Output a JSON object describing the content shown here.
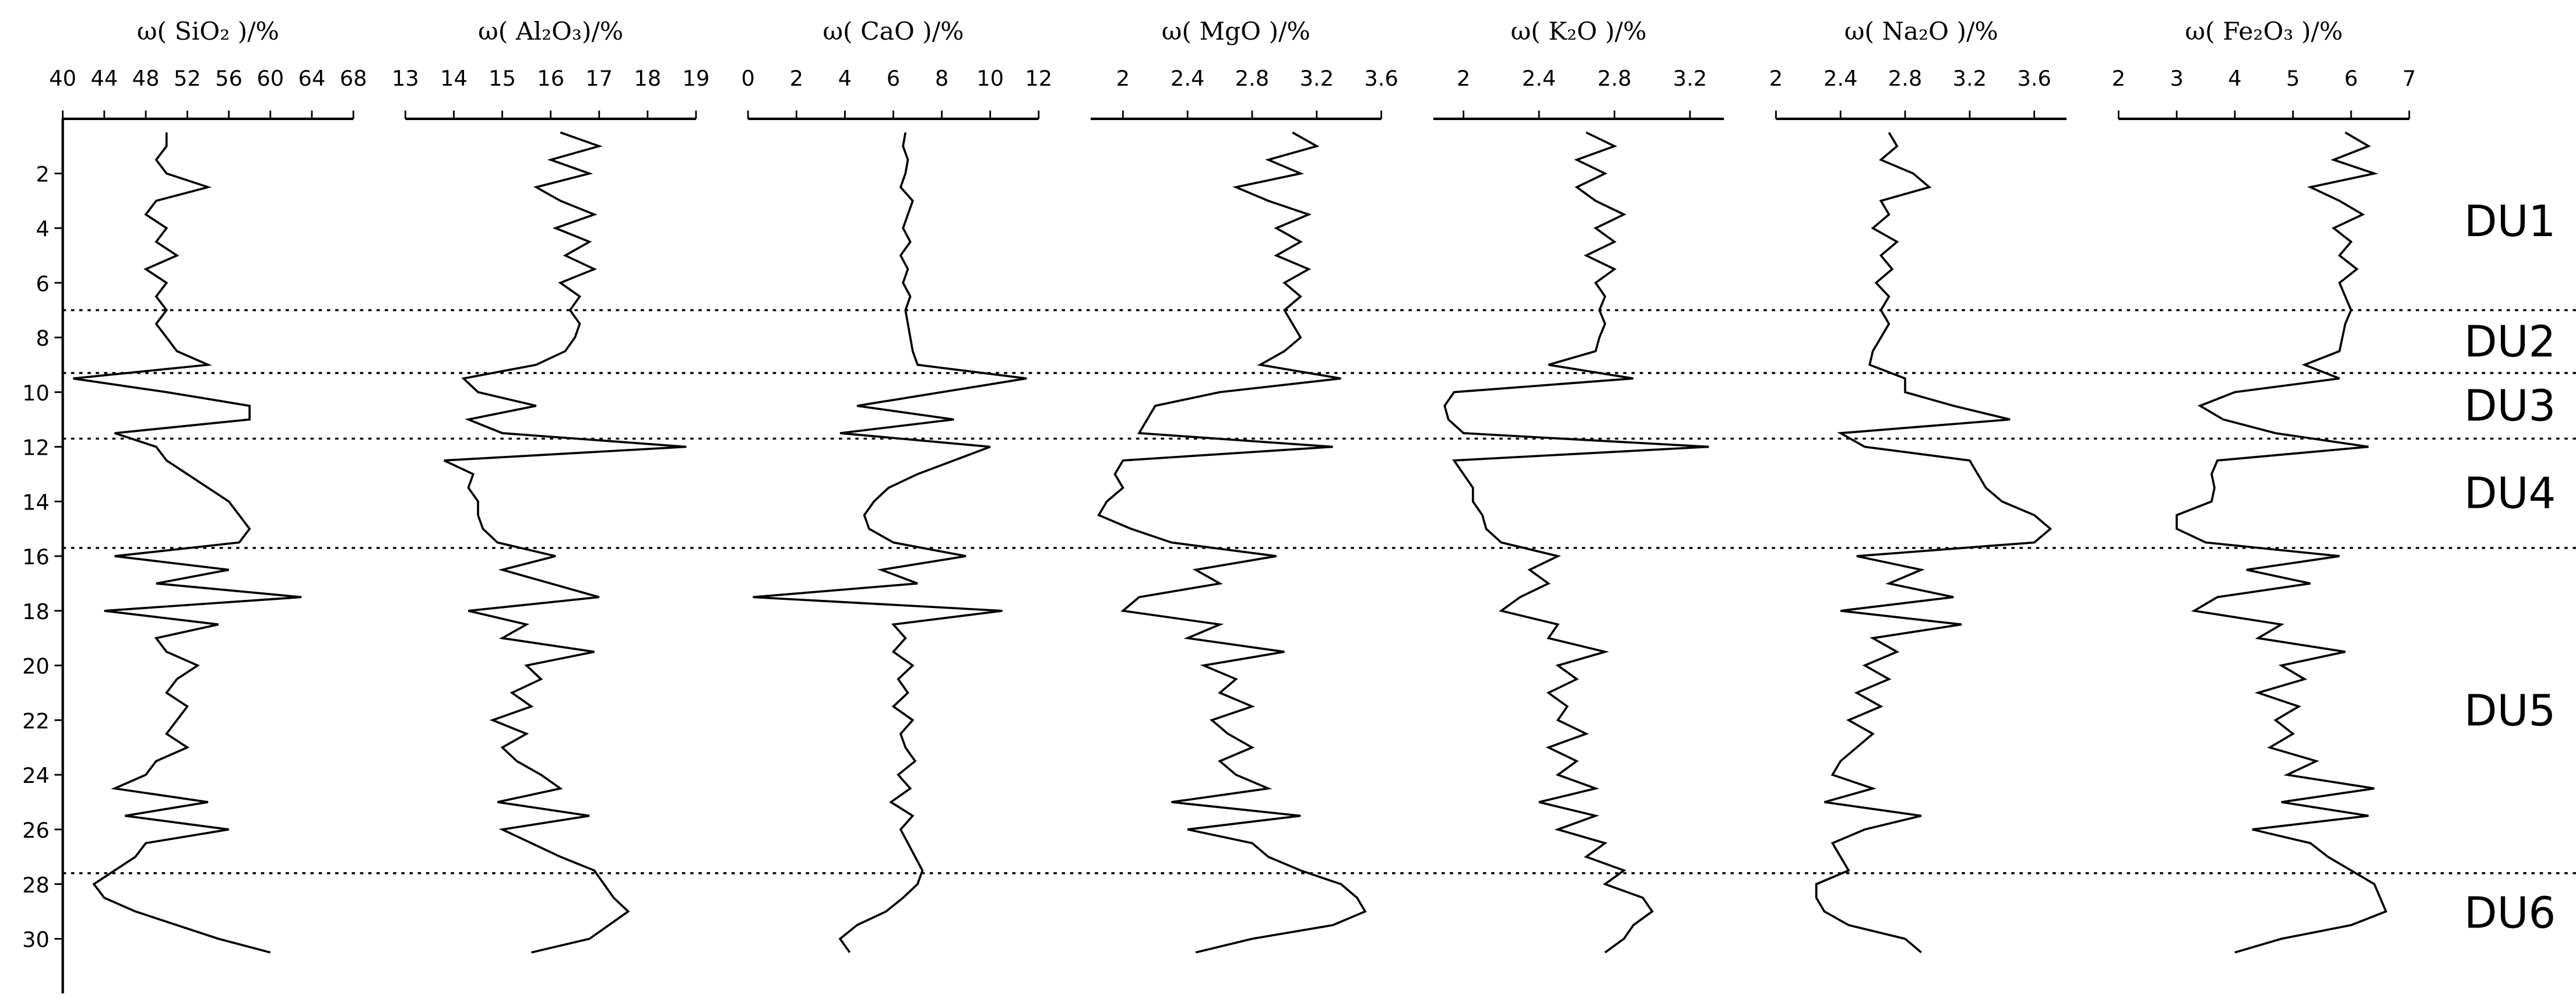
{
  "chart_data": [
    {
      "type": "line",
      "title": "ω( SiO₂ )/%",
      "xlim": [
        40,
        68
      ],
      "xticks": [
        40,
        44,
        48,
        52,
        56,
        60,
        64,
        68
      ],
      "color": "#000000",
      "values": [
        50,
        50,
        49,
        50,
        54,
        49,
        48,
        50,
        49,
        51,
        48,
        50,
        49,
        50,
        49,
        50,
        51,
        54,
        41,
        50,
        58,
        58,
        45,
        49,
        50,
        52,
        54,
        56,
        57,
        58,
        57,
        45,
        56,
        49,
        63,
        44,
        55,
        49,
        50,
        53,
        51,
        50,
        52,
        51,
        50,
        52,
        49,
        48,
        45,
        54,
        46,
        56,
        48,
        47,
        45,
        43,
        44,
        47,
        51,
        55,
        60
      ]
    },
    {
      "type": "line",
      "title": "ω( Al₂O₃)/%",
      "xlim": [
        13,
        19
      ],
      "xticks": [
        13,
        14,
        15,
        16,
        17,
        18,
        19
      ],
      "color": "#000000",
      "values": [
        16.2,
        17,
        16,
        16.8,
        15.7,
        16.2,
        16.9,
        16.1,
        16.8,
        16.3,
        16.9,
        16.2,
        16.6,
        16.4,
        16.6,
        16.5,
        16.3,
        15.7,
        14.2,
        14.5,
        15.7,
        14.3,
        15.0,
        18.8,
        13.8,
        14.4,
        14.3,
        14.5,
        14.5,
        14.6,
        14.9,
        16.1,
        15.0,
        16.0,
        17.0,
        14.3,
        15.5,
        15.0,
        16.9,
        15.5,
        15.8,
        15.2,
        15.6,
        14.8,
        15.5,
        15.0,
        15.3,
        15.8,
        16.2,
        14.9,
        16.8,
        15.0,
        15.6,
        16.2,
        16.9,
        17.1,
        17.3,
        17.6,
        17.2,
        16.8,
        15.6
      ]
    },
    {
      "type": "line",
      "title": "ω( CaO )/%",
      "xlim": [
        0,
        12
      ],
      "xticks": [
        0,
        2,
        4,
        6,
        8,
        10,
        12
      ],
      "color": "#000000",
      "values": [
        6.5,
        6.4,
        6.6,
        6.5,
        6.3,
        6.8,
        6.6,
        6.4,
        6.7,
        6.3,
        6.6,
        6.4,
        6.7,
        6.5,
        6.6,
        6.7,
        6.8,
        7.0,
        11.5,
        8.0,
        4.5,
        8.5,
        3.8,
        10.0,
        8.5,
        7.0,
        5.8,
        5.2,
        4.8,
        5.0,
        6.0,
        9.0,
        5.5,
        7.0,
        0.2,
        10.5,
        6.0,
        6.5,
        6.0,
        6.8,
        6.2,
        6.6,
        6.0,
        6.8,
        6.3,
        6.5,
        6.9,
        6.2,
        6.7,
        5.9,
        6.8,
        6.3,
        6.6,
        6.9,
        7.2,
        7.0,
        6.4,
        5.7,
        4.5,
        3.8,
        4.2
      ]
    },
    {
      "type": "line",
      "title": "ω( MgO )/%",
      "xlim": [
        1.8,
        3.6
      ],
      "xticks": [
        2,
        2.4,
        2.8,
        3.2,
        3.6
      ],
      "color": "#000000",
      "values": [
        3.05,
        3.2,
        2.9,
        3.1,
        2.7,
        2.9,
        3.15,
        2.95,
        3.1,
        2.95,
        3.15,
        3.0,
        3.1,
        3.0,
        3.05,
        3.1,
        3.0,
        2.85,
        3.35,
        2.6,
        2.2,
        2.15,
        2.1,
        3.3,
        2.0,
        1.95,
        2.0,
        1.9,
        1.85,
        2.05,
        2.3,
        2.95,
        2.45,
        2.6,
        2.1,
        2.0,
        2.6,
        2.4,
        3.0,
        2.5,
        2.7,
        2.6,
        2.8,
        2.55,
        2.65,
        2.8,
        2.6,
        2.7,
        2.9,
        2.3,
        3.1,
        2.4,
        2.8,
        2.9,
        3.1,
        3.35,
        3.45,
        3.5,
        3.3,
        2.8,
        2.45
      ]
    },
    {
      "type": "line",
      "title": "ω( K₂O )/%",
      "xlim": [
        1.84,
        3.38
      ],
      "xticks": [
        2,
        2.4,
        2.8,
        3.2
      ],
      "color": "#000000",
      "values": [
        2.65,
        2.8,
        2.6,
        2.75,
        2.6,
        2.7,
        2.85,
        2.7,
        2.8,
        2.65,
        2.8,
        2.7,
        2.75,
        2.72,
        2.75,
        2.72,
        2.7,
        2.45,
        2.9,
        1.95,
        1.9,
        1.92,
        2.0,
        3.3,
        1.95,
        2.0,
        2.05,
        2.05,
        2.1,
        2.12,
        2.2,
        2.5,
        2.35,
        2.45,
        2.3,
        2.2,
        2.5,
        2.45,
        2.75,
        2.5,
        2.6,
        2.45,
        2.55,
        2.5,
        2.65,
        2.45,
        2.6,
        2.5,
        2.7,
        2.4,
        2.7,
        2.5,
        2.75,
        2.65,
        2.85,
        2.75,
        2.95,
        3.0,
        2.9,
        2.85,
        2.75
      ]
    },
    {
      "type": "line",
      "title": "ω( Na₂O )/%",
      "xlim": [
        2,
        3.8
      ],
      "xticks": [
        2,
        2.4,
        2.8,
        3.2,
        3.6
      ],
      "color": "#000000",
      "values": [
        2.7,
        2.75,
        2.65,
        2.85,
        2.95,
        2.65,
        2.7,
        2.6,
        2.75,
        2.65,
        2.72,
        2.62,
        2.7,
        2.65,
        2.7,
        2.65,
        2.6,
        2.58,
        2.8,
        2.8,
        3.1,
        3.45,
        2.4,
        2.55,
        3.2,
        3.25,
        3.3,
        3.4,
        3.6,
        3.7,
        3.6,
        2.5,
        2.9,
        2.7,
        3.1,
        2.4,
        3.15,
        2.6,
        2.75,
        2.55,
        2.7,
        2.5,
        2.65,
        2.45,
        2.6,
        2.5,
        2.4,
        2.35,
        2.6,
        2.3,
        2.9,
        2.55,
        2.35,
        2.4,
        2.45,
        2.25,
        2.25,
        2.3,
        2.45,
        2.8,
        2.9
      ]
    },
    {
      "type": "line",
      "title": "ω( Fe₂O₃ )/%",
      "xlim": [
        2,
        7
      ],
      "xticks": [
        2,
        3,
        4,
        5,
        6,
        7
      ],
      "color": "#000000",
      "values": [
        5.9,
        6.3,
        5.7,
        6.4,
        5.3,
        5.8,
        6.2,
        5.7,
        6.0,
        5.8,
        6.1,
        5.8,
        5.9,
        6.0,
        5.9,
        5.85,
        5.8,
        5.2,
        5.8,
        4.0,
        3.4,
        3.8,
        4.7,
        6.3,
        3.7,
        3.6,
        3.65,
        3.6,
        3.0,
        3.0,
        3.5,
        5.8,
        4.2,
        5.3,
        3.7,
        3.3,
        4.8,
        4.4,
        5.9,
        4.8,
        5.2,
        4.4,
        5.1,
        4.7,
        5.0,
        4.6,
        5.4,
        4.9,
        6.4,
        4.8,
        6.3,
        4.3,
        5.3,
        5.6,
        6.0,
        6.4,
        6.5,
        6.6,
        6.0,
        4.8,
        4.0
      ]
    }
  ],
  "depth_axis": {
    "ylim": [
      0,
      32
    ],
    "yticks": [
      2,
      4,
      6,
      8,
      10,
      12,
      14,
      16,
      18,
      20,
      22,
      24,
      26,
      28,
      30
    ],
    "y": [
      0.5,
      1,
      1.5,
      2,
      2.5,
      3,
      3.5,
      4,
      4.5,
      5,
      5.5,
      6,
      6.5,
      7,
      7.5,
      8,
      8.5,
      9,
      9.5,
      10,
      10.5,
      11,
      11.5,
      12,
      12.5,
      13,
      13.5,
      14,
      14.5,
      15,
      15.5,
      16,
      16.5,
      17,
      17.5,
      18,
      18.5,
      19,
      19.5,
      20,
      20.5,
      21,
      21.5,
      22,
      22.5,
      23,
      23.5,
      24,
      24.5,
      25,
      25.5,
      26,
      26.5,
      27,
      27.5,
      28,
      28.5,
      29,
      29.5,
      30,
      30.5
    ]
  },
  "depth_units": {
    "boundaries": [
      7.0,
      9.3,
      11.7,
      15.7,
      27.6
    ],
    "labels": [
      "DU1",
      "DU2",
      "DU3",
      "DU4",
      "DU5",
      "DU6"
    ]
  }
}
